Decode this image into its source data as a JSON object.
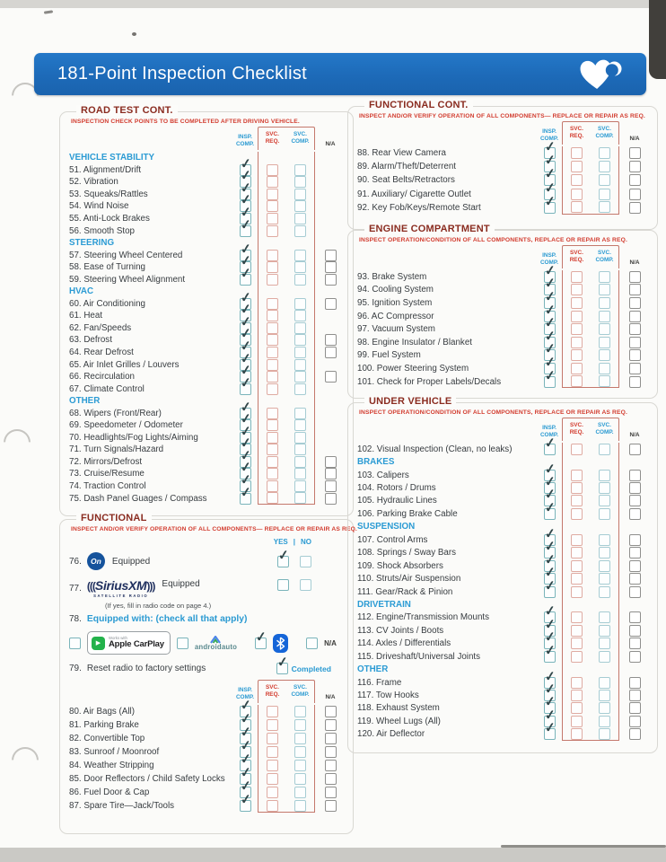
{
  "header": {
    "title": "181-Point Inspection Checklist",
    "logo": "heart"
  },
  "colors": {
    "header_blue": "#1d6ab8",
    "section_title_maroon": "#8a2c20",
    "warning_red": "#d23b2e",
    "accent_blue": "#2a9ad2",
    "tick": "#314649",
    "insp_box": "#7ab4ba",
    "svc_req_box": "#dfaba2",
    "svc_comp_box": "#a6ccd3",
    "na_box": "#8f8f8d",
    "svc_frame_red": "#c4786c"
  },
  "columns": [
    {
      "id": "insp",
      "lines": [
        "INSP.",
        "COMP."
      ]
    },
    {
      "id": "svc_req",
      "lines": [
        "SVC.",
        "REQ."
      ]
    },
    {
      "id": "svc_comp",
      "lines": [
        "SVC.",
        "COMP."
      ]
    },
    {
      "id": "na",
      "lines": [
        "N/A"
      ]
    }
  ],
  "sections": {
    "road_test": {
      "title": "ROAD TEST CONT.",
      "subtitle": "INSPECTION CHECK POINTS TO BE COMPLETED AFTER DRIVING VEHICLE.",
      "rows": [
        {
          "type": "sub",
          "label": "VEHICLE STABILITY"
        },
        {
          "type": "item",
          "num": "51.",
          "label": "Alignment/Drift",
          "insp_checked": true,
          "na_box": false
        },
        {
          "type": "item",
          "num": "52.",
          "label": "Vibration",
          "insp_checked": true,
          "na_box": false
        },
        {
          "type": "item",
          "num": "53.",
          "label": "Squeaks/Rattles",
          "insp_checked": true,
          "na_box": false
        },
        {
          "type": "item",
          "num": "54.",
          "label": "Wind Noise",
          "insp_checked": true,
          "na_box": false
        },
        {
          "type": "item",
          "num": "55.",
          "label": "Anti-Lock Brakes",
          "insp_checked": true,
          "na_box": false
        },
        {
          "type": "item",
          "num": "56.",
          "label": "Smooth Stop",
          "insp_checked": true,
          "na_box": false
        },
        {
          "type": "sub",
          "label": "STEERING"
        },
        {
          "type": "item",
          "num": "57.",
          "label": "Steering Wheel Centered",
          "insp_checked": true,
          "na_box": true
        },
        {
          "type": "item",
          "num": "58.",
          "label": "Ease of Turning",
          "insp_checked": true,
          "na_box": true
        },
        {
          "type": "item",
          "num": "59.",
          "label": "Steering Wheel Alignment",
          "insp_checked": true,
          "na_box": true
        },
        {
          "type": "sub",
          "label": "HVAC"
        },
        {
          "type": "item",
          "num": "60.",
          "label": "Air Conditioning",
          "insp_checked": true,
          "na_box": true
        },
        {
          "type": "item",
          "num": "61.",
          "label": "Heat",
          "insp_checked": true,
          "na_box": false
        },
        {
          "type": "item",
          "num": "62.",
          "label": "Fan/Speeds",
          "insp_checked": true,
          "na_box": false
        },
        {
          "type": "item",
          "num": "63.",
          "label": "Defrost",
          "insp_checked": true,
          "na_box": true
        },
        {
          "type": "item",
          "num": "64.",
          "label": "Rear Defrost",
          "insp_checked": true,
          "na_box": true
        },
        {
          "type": "item",
          "num": "65.",
          "label": "Air Inlet Grilles / Louvers",
          "insp_checked": true,
          "na_box": false
        },
        {
          "type": "item",
          "num": "66.",
          "label": "Recirculation",
          "insp_checked": true,
          "na_box": true
        },
        {
          "type": "item",
          "num": "67.",
          "label": "Climate Control",
          "insp_checked": true,
          "na_box": false
        },
        {
          "type": "sub",
          "label": "OTHER"
        },
        {
          "type": "item",
          "num": "68.",
          "label": "Wipers (Front/Rear)",
          "insp_checked": true,
          "na_box": false
        },
        {
          "type": "item",
          "num": "69.",
          "label": "Speedometer / Odometer",
          "insp_checked": true,
          "na_box": false
        },
        {
          "type": "item",
          "num": "70.",
          "label": "Headlights/Fog Lights/Aiming",
          "insp_checked": true,
          "na_box": false
        },
        {
          "type": "item",
          "num": "71.",
          "label": "Turn Signals/Hazard",
          "insp_checked": true,
          "na_box": false
        },
        {
          "type": "item",
          "num": "72.",
          "label": "Mirrors/Defrost",
          "insp_checked": true,
          "na_box": true
        },
        {
          "type": "item",
          "num": "73.",
          "label": "Cruise/Resume",
          "insp_checked": true,
          "na_box": true
        },
        {
          "type": "item",
          "num": "74.",
          "label": "Traction Control",
          "insp_checked": true,
          "na_box": true
        },
        {
          "type": "item",
          "num": "75.",
          "label": "Dash Panel Guages / Compass",
          "insp_checked": true,
          "na_box": true
        }
      ]
    },
    "functional": {
      "title": "FUNCTIONAL",
      "subtitle": "INSPECT AND/OR VERIFY OPERATION OF ALL COMPONENTS— REPLACE OR REPAIR AS REQ.",
      "yes_label": "YES",
      "divider": "|",
      "no_label": "NO",
      "onstar": {
        "num": "76.",
        "logo_text": "On",
        "label": "Equipped",
        "yes_checked": true,
        "no_checked": false
      },
      "sirius": {
        "num": "77.",
        "logo_arc_l": "(((",
        "logo_text": "SiriusXM",
        "logo_arc_r": ")))",
        "logo_sub": "SATELLITE RADIO",
        "label": "Equipped",
        "yes_checked": false,
        "no_checked": false,
        "note": "(If yes, fill in radio code on page 4.)"
      },
      "equipped_with": {
        "num": "78.",
        "label": "Equipped with: (check all that apply)",
        "carplay": {
          "checked": false,
          "works_with": "Works with",
          "name": "Apple CarPlay",
          "play_glyph": "▶"
        },
        "android_auto": {
          "checked": false,
          "name": "androidauto"
        },
        "bluetooth": {
          "checked": true
        },
        "na": {
          "checked": false,
          "label": "N/A"
        }
      },
      "reset_radio": {
        "num": "79.",
        "label": "Reset radio to factory settings",
        "checked": true,
        "check_label": "Completed"
      },
      "rows": [
        {
          "type": "item",
          "num": "80.",
          "label": "Air Bags (All)",
          "insp_checked": true,
          "na_box": true
        },
        {
          "type": "item",
          "num": "81.",
          "label": "Parking Brake",
          "insp_checked": true,
          "na_box": true
        },
        {
          "type": "item",
          "num": "82.",
          "label": "Convertible Top",
          "insp_checked": true,
          "na_box": true
        },
        {
          "type": "item",
          "num": "83.",
          "label": "Sunroof / Moonroof",
          "insp_checked": true,
          "na_box": true
        },
        {
          "type": "item",
          "num": "84.",
          "label": "Weather Stripping",
          "insp_checked": true,
          "na_box": true
        },
        {
          "type": "item",
          "num": "85.",
          "label": "Door Reflectors / Child Safety Locks",
          "insp_checked": true,
          "na_box": true
        },
        {
          "type": "item",
          "num": "86.",
          "label": "Fuel Door & Cap",
          "insp_checked": true,
          "na_box": true
        },
        {
          "type": "item",
          "num": "87.",
          "label": "Spare Tire—Jack/Tools",
          "insp_checked": true,
          "na_box": true
        }
      ]
    },
    "functional_cont": {
      "title": "FUNCTIONAL CONT.",
      "subtitle": "INSPECT AND/OR VERIFY OPERATION OF ALL COMPONENTS— REPLACE OR REPAIR AS REQ.",
      "rows": [
        {
          "type": "item",
          "num": "88.",
          "label": "Rear View Camera",
          "insp_checked": true,
          "na_box": true
        },
        {
          "type": "item",
          "num": "89.",
          "label": "Alarm/Theft/Deterrent",
          "insp_checked": true,
          "na_box": true
        },
        {
          "type": "item",
          "num": "90.",
          "label": "Seat Belts/Retractors",
          "insp_checked": true,
          "na_box": true
        },
        {
          "type": "item",
          "num": "91.",
          "label": "Auxiliary/ Cigarette Outlet",
          "insp_checked": true,
          "na_box": true
        },
        {
          "type": "item",
          "num": "92.",
          "label": "Key Fob/Keys/Remote Start",
          "insp_checked": true,
          "na_box": true
        }
      ]
    },
    "engine": {
      "title": "ENGINE COMPARTMENT",
      "subtitle": "INSPECT OPERATION/CONDITION OF ALL COMPONENTS, REPLACE OR REPAIR AS REQ.",
      "rows": [
        {
          "type": "item",
          "num": "93.",
          "label": "Brake System",
          "insp_checked": true,
          "na_box": true
        },
        {
          "type": "item",
          "num": "94.",
          "label": "Cooling System",
          "insp_checked": true,
          "na_box": true
        },
        {
          "type": "item",
          "num": "95.",
          "label": "Ignition System",
          "insp_checked": true,
          "na_box": true
        },
        {
          "type": "item",
          "num": "96.",
          "label": "AC Compressor",
          "insp_checked": true,
          "na_box": true
        },
        {
          "type": "item",
          "num": "97.",
          "label": "Vacuum System",
          "insp_checked": true,
          "na_box": true
        },
        {
          "type": "item",
          "num": "98.",
          "label": "Engine Insulator / Blanket",
          "insp_checked": true,
          "na_box": true
        },
        {
          "type": "item",
          "num": "99.",
          "label": "Fuel System",
          "insp_checked": true,
          "na_box": true
        },
        {
          "type": "item",
          "num": "100.",
          "label": "Power Steering System",
          "insp_checked": true,
          "na_box": true
        },
        {
          "type": "item",
          "num": "101.",
          "label": "Check for Proper Labels/Decals",
          "insp_checked": true,
          "na_box": true
        }
      ]
    },
    "under_vehicle": {
      "title": "UNDER VEHICLE",
      "subtitle": "INSPECT OPERATION/CONDITION OF ALL COMPONENTS, REPLACE OR REPAIR AS REQ.",
      "rows": [
        {
          "type": "item",
          "num": "102.",
          "label": "Visual Inspection (Clean, no leaks)",
          "insp_checked": true,
          "na_box": true
        },
        {
          "type": "sub",
          "label": "BRAKES"
        },
        {
          "type": "item",
          "num": "103.",
          "label": "Calipers",
          "insp_checked": true,
          "na_box": true
        },
        {
          "type": "item",
          "num": "104.",
          "label": "Rotors / Drums",
          "insp_checked": true,
          "na_box": true
        },
        {
          "type": "item",
          "num": "105.",
          "label": "Hydraulic Lines",
          "insp_checked": true,
          "na_box": true
        },
        {
          "type": "item",
          "num": "106.",
          "label": "Parking Brake Cable",
          "insp_checked": true,
          "na_box": true
        },
        {
          "type": "sub",
          "label": "SUSPENSION"
        },
        {
          "type": "item",
          "num": "107.",
          "label": "Control Arms",
          "insp_checked": true,
          "na_box": true
        },
        {
          "type": "item",
          "num": "108.",
          "label": "Springs / Sway Bars",
          "insp_checked": true,
          "na_box": true
        },
        {
          "type": "item",
          "num": "109.",
          "label": "Shock Absorbers",
          "insp_checked": true,
          "na_box": true
        },
        {
          "type": "item",
          "num": "110.",
          "label": "Struts/Air Suspension",
          "insp_checked": true,
          "na_box": true
        },
        {
          "type": "item",
          "num": "111.",
          "label": "Gear/Rack & Pinion",
          "insp_checked": true,
          "na_box": true
        },
        {
          "type": "sub",
          "label": "DRIVETRAIN"
        },
        {
          "type": "item",
          "num": "112.",
          "label": "Engine/Transmission Mounts",
          "insp_checked": true,
          "na_box": true
        },
        {
          "type": "item",
          "num": "113.",
          "label": "CV Joints / Boots",
          "insp_checked": true,
          "na_box": true
        },
        {
          "type": "item",
          "num": "114.",
          "label": "Axles / Differentials",
          "insp_checked": true,
          "na_box": true
        },
        {
          "type": "item",
          "num": "115.",
          "label": "Driveshaft/Universal Joints",
          "insp_checked": true,
          "na_box": true
        },
        {
          "type": "sub",
          "label": "OTHER"
        },
        {
          "type": "item",
          "num": "116.",
          "label": "Frame",
          "insp_checked": true,
          "na_box": true
        },
        {
          "type": "item",
          "num": "117.",
          "label": "Tow Hooks",
          "insp_checked": true,
          "na_box": true
        },
        {
          "type": "item",
          "num": "118.",
          "label": "Exhaust System",
          "insp_checked": true,
          "na_box": true
        },
        {
          "type": "item",
          "num": "119.",
          "label": "Wheel Lugs (All)",
          "insp_checked": true,
          "na_box": true
        },
        {
          "type": "item",
          "num": "120.",
          "label": "Air Deflector",
          "insp_checked": true,
          "na_box": true
        }
      ]
    }
  }
}
